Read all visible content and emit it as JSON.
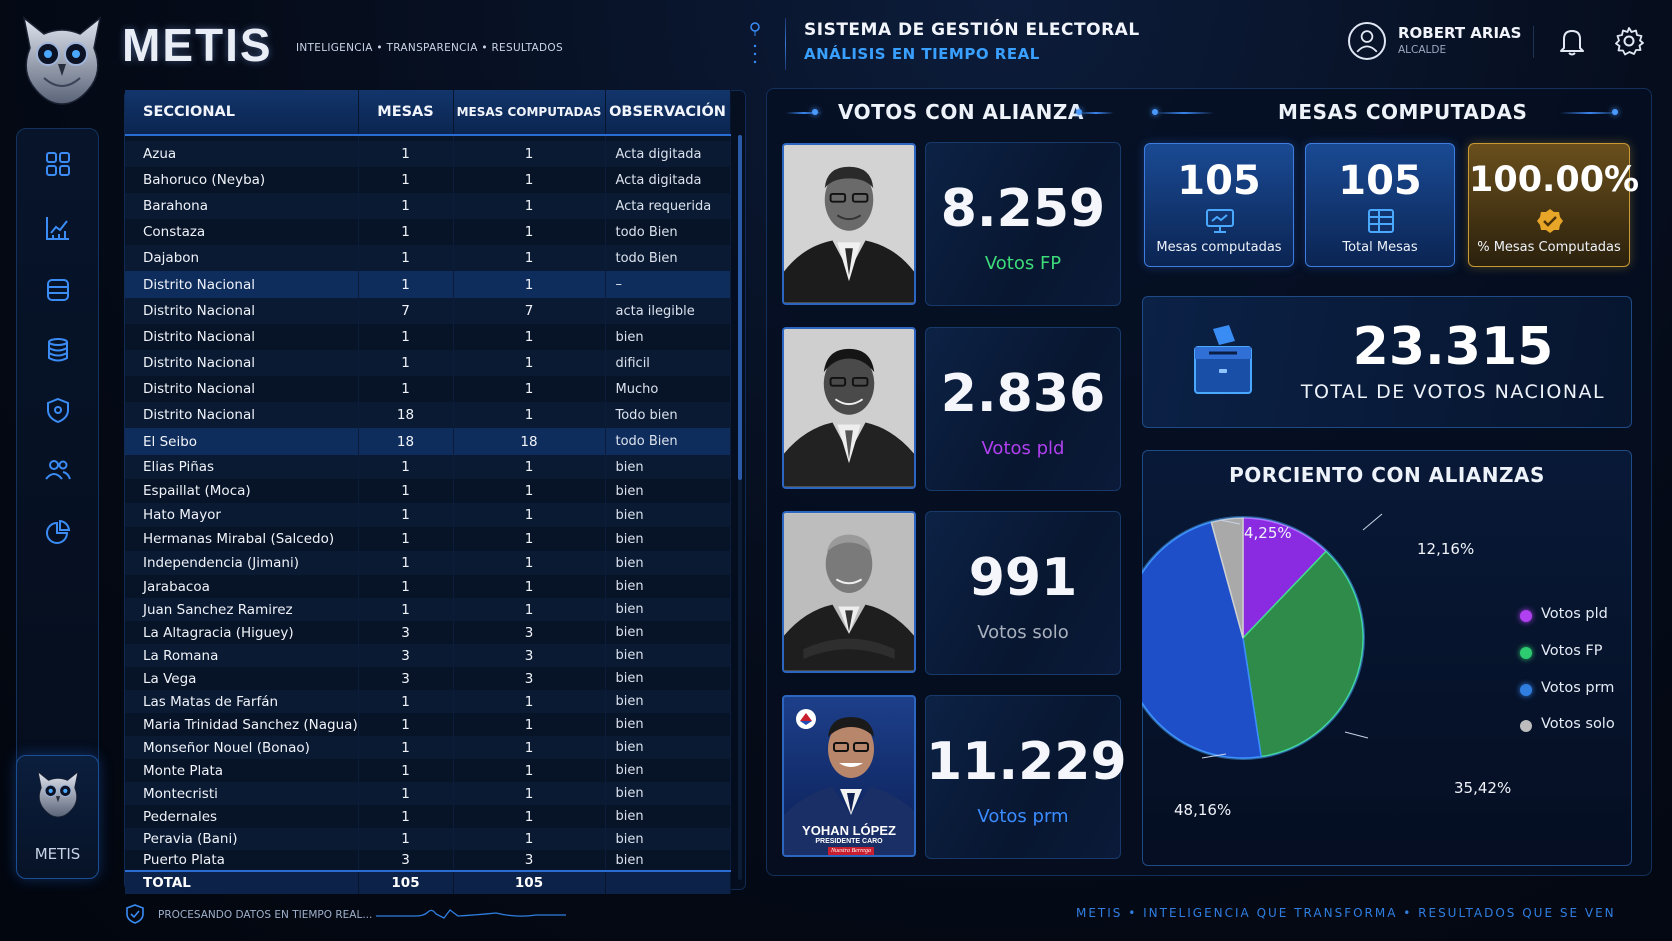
{
  "header": {
    "brand": "METIS",
    "tagline": "INTELIGENCIA • TRANSPARENCIA • RESULTADOS",
    "system_title": "SISTEMA DE GESTIÓN ELECTORAL",
    "system_subtitle": "ANÁLISIS EN TIEMPO REAL",
    "user_name": "ROBERT ARIAS",
    "user_role": "ALCALDE"
  },
  "sidebar": {
    "items": [
      "grid-icon",
      "chart-icon",
      "database-icon",
      "database-stack-icon",
      "shield-icon",
      "users-icon",
      "pie-chart-icon"
    ],
    "logo_name": "METIS"
  },
  "table": {
    "columns": [
      "SECCIONAL",
      "MESAS",
      "MESAS COMPUTADAS",
      "OBSERVACIÓN"
    ],
    "rows": [
      [
        "Azua",
        "1",
        "1",
        "Acta digitada"
      ],
      [
        "Bahoruco (Neyba)",
        "1",
        "1",
        "Acta digitada"
      ],
      [
        "Barahona",
        "1",
        "1",
        "Acta requerida"
      ],
      [
        "Constaza",
        "1",
        "1",
        "todo Bien"
      ],
      [
        "Dajabon",
        "1",
        "1",
        "todo Bien"
      ],
      [
        "Distrito Nacional",
        "1",
        "1",
        "–"
      ],
      [
        "Distrito Nacional",
        "7",
        "7",
        "acta ilegible"
      ],
      [
        "Distrito Nacional",
        "1",
        "1",
        "bien"
      ],
      [
        "Distrito Nacional",
        "1",
        "1",
        "dificil"
      ],
      [
        "Distrito Nacional",
        "1",
        "1",
        "Mucho"
      ],
      [
        "Distrito Nacional",
        "18",
        "1",
        "Todo bien"
      ],
      [
        "El Seibo",
        "18",
        "18",
        "todo Bien"
      ],
      [
        "Elias Piñas",
        "1",
        "1",
        "bien"
      ],
      [
        "Espaillat (Moca)",
        "1",
        "1",
        "bien"
      ],
      [
        "Hato Mayor",
        "1",
        "1",
        "bien"
      ],
      [
        "Hermanas Mirabal (Salcedo)",
        "1",
        "1",
        "bien"
      ],
      [
        "Independencia (Jimani)",
        "1",
        "1",
        "bien"
      ],
      [
        "Jarabacoa",
        "1",
        "1",
        "bien"
      ],
      [
        "Juan Sanchez Ramirez",
        "1",
        "1",
        "bien"
      ],
      [
        "La Altagracia (Higuey)",
        "3",
        "3",
        "bien"
      ],
      [
        "La Romana",
        "3",
        "3",
        "bien"
      ],
      [
        "La Vega",
        "3",
        "3",
        "bien"
      ],
      [
        "Las Matas de Farfán",
        "1",
        "1",
        "bien"
      ],
      [
        "Maria Trinidad Sanchez (Nagua)",
        "1",
        "1",
        "bien"
      ],
      [
        "Monseñor Nouel (Bonao)",
        "1",
        "1",
        "bien"
      ],
      [
        "Monte Plata",
        "1",
        "1",
        "bien"
      ],
      [
        "Montecristi",
        "1",
        "1",
        "bien"
      ],
      [
        "Pedernales",
        "1",
        "1",
        "bien"
      ],
      [
        "Peravia (Bani)",
        "1",
        "1",
        "bien"
      ],
      [
        "Puerto Plata",
        "3",
        "3",
        "bien"
      ]
    ],
    "total": {
      "label": "TOTAL",
      "mesas": "105",
      "computadas": "105",
      "obs": ""
    },
    "status_text": "PROCESANDO DATOS EN TIEMPO REAL..."
  },
  "votes": {
    "title": "VOTOS CON ALIANZA",
    "cards": [
      {
        "value": "8.259",
        "label": "Votos FP",
        "color": "#3ddc7a"
      },
      {
        "value": "2.836",
        "label": "Votos pld",
        "color": "#b040f0"
      },
      {
        "value": "991",
        "label": "Votos solo",
        "color": "#a8b0bd"
      },
      {
        "value": "11.229",
        "label": "Votos prm",
        "color": "#3a8cff"
      }
    ],
    "prm_photo_name": "YOHAN LÓPEZ",
    "prm_photo_role": "PRESIDENTE CARO",
    "prm_photo_slogan": "Nuestra Berrega"
  },
  "mesas": {
    "title": "MESAS COMPUTADAS",
    "cards": [
      {
        "value": "105",
        "label": "Mesas computadas"
      },
      {
        "value": "105",
        "label": "Total Mesas"
      },
      {
        "value": "100.00%",
        "label": "% Mesas Computadas"
      }
    ],
    "total_value": "23.315",
    "total_label": "TOTAL DE VOTOS NACIONAL"
  },
  "pie": {
    "title": "PORCIENTO CON ALIANZAS",
    "labels": [
      "12,16%",
      "35,42%",
      "48,16%",
      "4,25%"
    ]
  },
  "chart_data": {
    "type": "pie",
    "title": "PORCIENTO CON ALIANZAS",
    "slices": [
      {
        "name": "Votos pld",
        "value": 12.16,
        "color": "#8a2be2"
      },
      {
        "name": "Votos FP",
        "value": 35.42,
        "color": "#2e8b4a"
      },
      {
        "name": "Votos prm",
        "value": 48.16,
        "color": "#1e4fc8"
      },
      {
        "name": "Votos solo",
        "value": 4.25,
        "color": "#a9a9a9"
      }
    ],
    "legend": [
      "Votos pld",
      "Votos FP",
      "Votos prm",
      "Votos solo"
    ],
    "legend_position": "right"
  },
  "footer": {
    "text": "METIS • INTELIGENCIA QUE TRANSFORMA • RESULTADOS QUE SE VEN"
  }
}
